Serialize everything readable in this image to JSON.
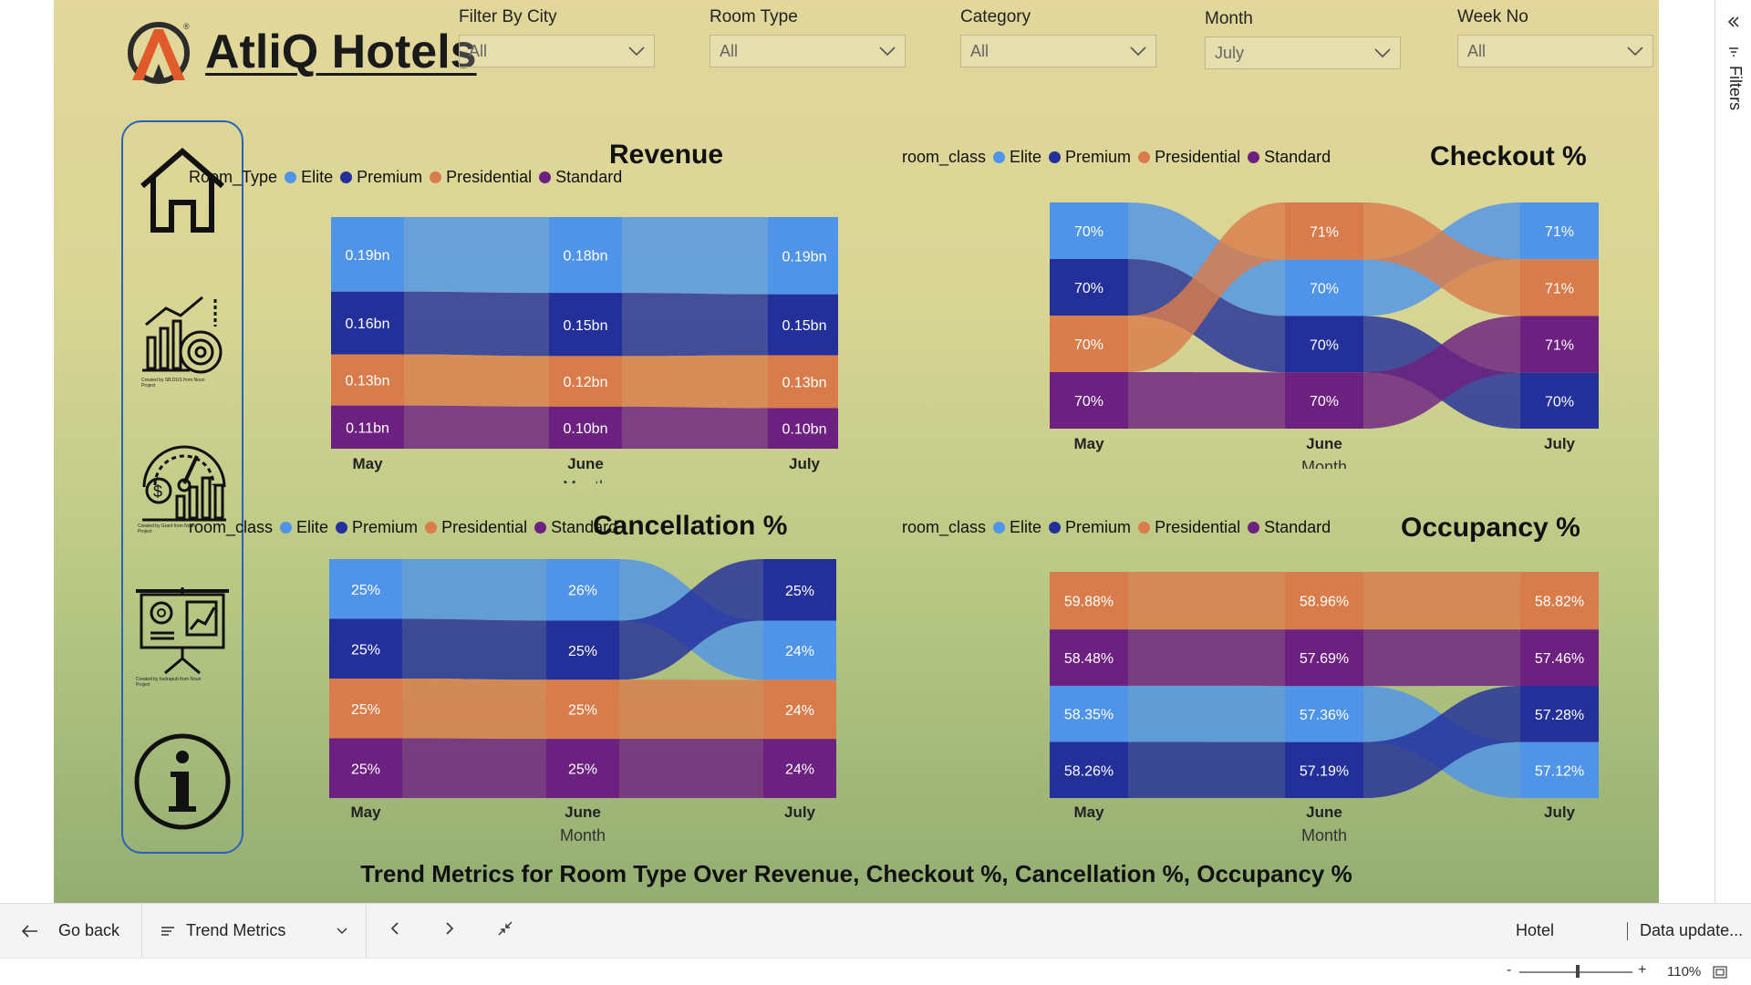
{
  "app": {
    "title": "AtliQ Hotels"
  },
  "filters": [
    {
      "label": "Filter By City",
      "value": "All"
    },
    {
      "label": "Room Type",
      "value": "All"
    },
    {
      "label": "Category",
      "value": "All"
    },
    {
      "label": "Month",
      "value": "July"
    },
    {
      "label": "Week No",
      "value": "All"
    }
  ],
  "nav": [
    {
      "icon": "home-icon"
    },
    {
      "icon": "analytics-icon",
      "caption": "Created by SBJ2US from Noun Project"
    },
    {
      "icon": "revenue-gauge-icon",
      "caption": "Created by Grant from Noun Project"
    },
    {
      "icon": "presentation-icon",
      "caption": "Created by bsdrapub from Noun Project"
    },
    {
      "icon": "info-icon"
    }
  ],
  "colors": {
    "Elite": "#4f94e8",
    "Premium": "#23309a",
    "Presidential": "#d97c4c",
    "Standard": "#6c2180"
  },
  "chart_data": [
    {
      "type": "ribbon",
      "title": "Revenue",
      "legend_title": "Room_Type",
      "xlabel": "Month",
      "categories": [
        "May",
        "June",
        "July"
      ],
      "series": [
        {
          "name": "Elite",
          "values": [
            0.19,
            0.18,
            0.19
          ],
          "labels": [
            "0.19bn",
            "0.18bn",
            "0.19bn"
          ]
        },
        {
          "name": "Premium",
          "values": [
            0.16,
            0.15,
            0.15
          ],
          "labels": [
            "0.16bn",
            "0.15bn",
            "0.15bn"
          ]
        },
        {
          "name": "Presidential",
          "values": [
            0.13,
            0.12,
            0.13
          ],
          "labels": [
            "0.13bn",
            "0.12bn",
            "0.13bn"
          ]
        },
        {
          "name": "Standard",
          "values": [
            0.11,
            0.1,
            0.1
          ],
          "labels": [
            "0.11bn",
            "0.10bn",
            "0.10bn"
          ]
        }
      ]
    },
    {
      "type": "ribbon",
      "title": "Checkout %",
      "legend_title": "room_class",
      "xlabel": "Month",
      "categories": [
        "May",
        "June",
        "July"
      ],
      "series": [
        {
          "name": "Elite",
          "values": [
            70,
            70,
            71
          ],
          "labels": [
            "70%",
            "70%",
            "71%"
          ]
        },
        {
          "name": "Premium",
          "values": [
            70,
            70,
            70
          ],
          "labels": [
            "70%",
            "70%",
            "70%"
          ]
        },
        {
          "name": "Presidential",
          "values": [
            70,
            71,
            71
          ],
          "labels": [
            "70%",
            "71%",
            "71%"
          ]
        },
        {
          "name": "Standard",
          "values": [
            70,
            70,
            71
          ],
          "labels": [
            "70%",
            "70%",
            "71%"
          ]
        }
      ]
    },
    {
      "type": "ribbon",
      "title": "Cancellation %",
      "legend_title": "room_class",
      "xlabel": "Month",
      "categories": [
        "May",
        "June",
        "July"
      ],
      "series": [
        {
          "name": "Elite",
          "values": [
            25,
            26,
            24
          ],
          "labels": [
            "25%",
            "26%",
            "24%"
          ]
        },
        {
          "name": "Premium",
          "values": [
            25,
            25,
            25
          ],
          "labels": [
            "25%",
            "25%",
            "25%"
          ]
        },
        {
          "name": "Presidential",
          "values": [
            25,
            25,
            24
          ],
          "labels": [
            "25%",
            "25%",
            "24%"
          ]
        },
        {
          "name": "Standard",
          "values": [
            25,
            25,
            24
          ],
          "labels": [
            "25%",
            "25%",
            "24%"
          ]
        }
      ]
    },
    {
      "type": "ribbon",
      "title": "Occupancy %",
      "legend_title": "room_class",
      "xlabel": "Month",
      "categories": [
        "May",
        "June",
        "July"
      ],
      "series": [
        {
          "name": "Elite",
          "values": [
            58.35,
            57.36,
            57.12
          ],
          "labels": [
            "58.35%",
            "57.36%",
            "57.12%"
          ]
        },
        {
          "name": "Premium",
          "values": [
            58.26,
            57.19,
            57.28
          ],
          "labels": [
            "58.26%",
            "57.19%",
            "57.28%"
          ]
        },
        {
          "name": "Presidential",
          "values": [
            59.88,
            58.96,
            58.82
          ],
          "labels": [
            "59.88%",
            "58.96%",
            "58.82%"
          ]
        },
        {
          "name": "Standard",
          "values": [
            58.48,
            57.69,
            57.46
          ],
          "labels": [
            "58.48%",
            "57.69%",
            "57.46%"
          ]
        }
      ]
    }
  ],
  "footer": {
    "title": "Trend Metrics for Room Type Over Revenue, Checkout %, Cancellation %, Occupancy %"
  },
  "bottombar": {
    "go_back": "Go back",
    "page": "Trend Metrics",
    "workspace": "Hotel",
    "data_update": "Data update..."
  },
  "statusbar": {
    "zoom": "110%"
  },
  "filters_pane": {
    "label": "Filters"
  }
}
